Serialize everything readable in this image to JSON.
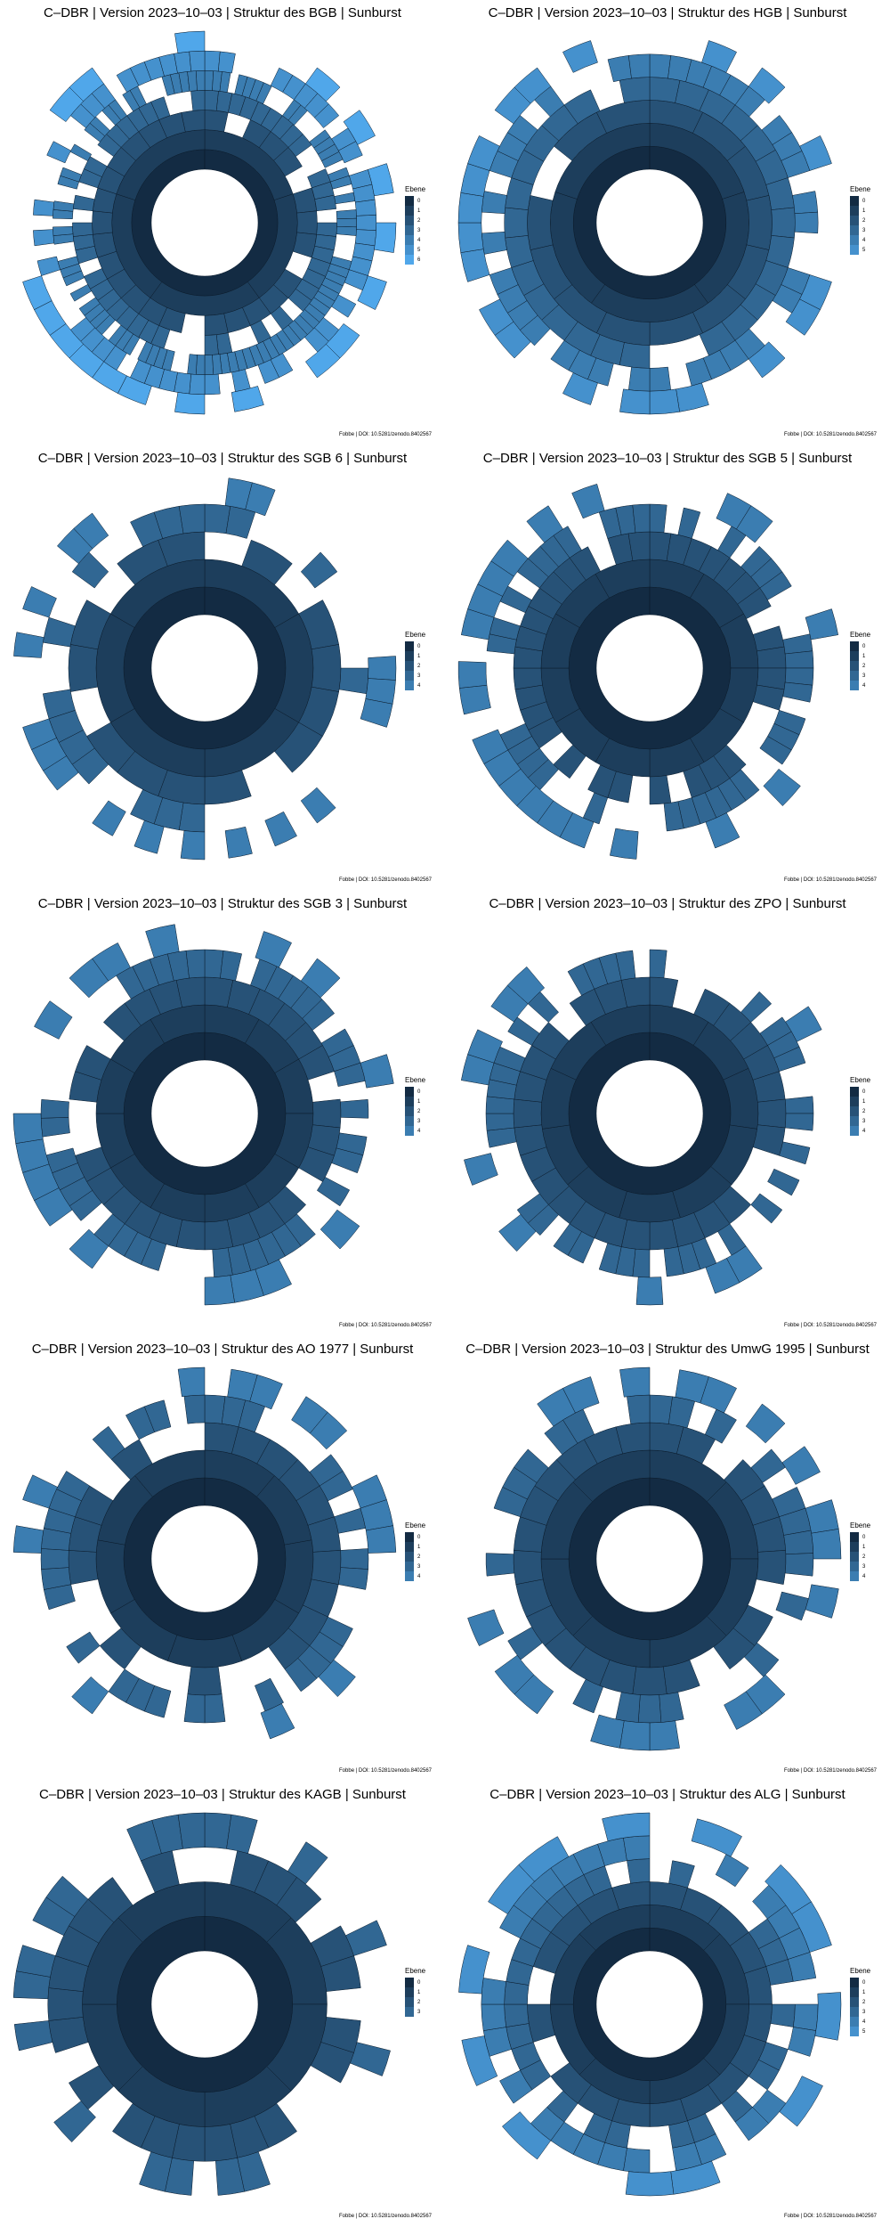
{
  "legend_title": "Ebene",
  "caption": "Fobbe | DOI: 10.5281/zenodo.8402567",
  "level_colors": [
    "#132b43",
    "#1d3e5c",
    "#275277",
    "#316793",
    "#3b7db1",
    "#4591cd",
    "#50a7ea"
  ],
  "chart_data": [
    {
      "type": "sunburst",
      "title": "C–DBR | Version 2023–10–03 | Struktur des BGB | Sunburst",
      "levels": [
        0,
        1,
        2,
        3,
        4,
        5,
        6
      ],
      "max_depth": 6,
      "segments_per_level": [
        1,
        5,
        30,
        60,
        110,
        70,
        40
      ],
      "legend": {
        "title": "Ebene",
        "entries": [
          "0",
          "1",
          "2",
          "3",
          "4",
          "5",
          "6"
        ],
        "position": "right"
      }
    },
    {
      "type": "sunburst",
      "title": "C–DBR | Version 2023–10–03 | Struktur des HGB | Sunburst",
      "levels": [
        0,
        1,
        2,
        3,
        4,
        5
      ],
      "max_depth": 5,
      "segments_per_level": [
        1,
        5,
        14,
        30,
        50,
        40
      ],
      "legend": {
        "title": "Ebene",
        "entries": [
          "0",
          "1",
          "2",
          "3",
          "4",
          "5"
        ],
        "position": "right"
      }
    },
    {
      "type": "sunburst",
      "title": "C–DBR | Version 2023–10–03 | Struktur des SGB 6 | Sunburst",
      "levels": [
        0,
        1,
        2,
        3,
        4
      ],
      "max_depth": 4,
      "segments_per_level": [
        1,
        6,
        18,
        40,
        50
      ],
      "legend": {
        "title": "Ebene",
        "entries": [
          "0",
          "1",
          "2",
          "3",
          "4"
        ],
        "position": "right"
      }
    },
    {
      "type": "sunburst",
      "title": "C–DBR | Version 2023–10–03 | Struktur des SGB 5 | Sunburst",
      "levels": [
        0,
        1,
        2,
        3,
        4
      ],
      "max_depth": 4,
      "segments_per_level": [
        1,
        12,
        40,
        60,
        45
      ],
      "legend": {
        "title": "Ebene",
        "entries": [
          "0",
          "1",
          "2",
          "3",
          "4"
        ],
        "position": "right"
      }
    },
    {
      "type": "sunburst",
      "title": "C–DBR | Version 2023–10–03 | Struktur des SGB 3 | Sunburst",
      "levels": [
        0,
        1,
        2,
        3,
        4
      ],
      "max_depth": 4,
      "segments_per_level": [
        1,
        12,
        30,
        55,
        40
      ],
      "legend": {
        "title": "Ebene",
        "entries": [
          "0",
          "1",
          "2",
          "3",
          "4"
        ],
        "position": "right"
      }
    },
    {
      "type": "sunburst",
      "title": "C–DBR | Version 2023–10–03 | Struktur des ZPO | Sunburst",
      "levels": [
        0,
        1,
        2,
        3,
        4
      ],
      "max_depth": 4,
      "segments_per_level": [
        1,
        11,
        30,
        60,
        45
      ],
      "legend": {
        "title": "Ebene",
        "entries": [
          "0",
          "1",
          "2",
          "3",
          "4"
        ],
        "position": "right"
      }
    },
    {
      "type": "sunburst",
      "title": "C–DBR | Version 2023–10–03 | Struktur des AO 1977 | Sunburst",
      "levels": [
        0,
        1,
        2,
        3,
        4
      ],
      "max_depth": 4,
      "segments_per_level": [
        1,
        9,
        25,
        50,
        45
      ],
      "legend": {
        "title": "Ebene",
        "entries": [
          "0",
          "1",
          "2",
          "3",
          "4"
        ],
        "position": "right"
      }
    },
    {
      "type": "sunburst",
      "title": "C–DBR | Version 2023–10–03 | Struktur des UmwG 1995 | Sunburst",
      "levels": [
        0,
        1,
        2,
        3,
        4
      ],
      "max_depth": 4,
      "segments_per_level": [
        1,
        8,
        25,
        45,
        40
      ],
      "legend": {
        "title": "Ebene",
        "entries": [
          "0",
          "1",
          "2",
          "3",
          "4"
        ],
        "position": "right"
      }
    },
    {
      "type": "sunburst",
      "title": "C–DBR | Version 2023–10–03 | Struktur des KAGB | Sunburst",
      "levels": [
        0,
        1,
        2,
        3
      ],
      "max_depth": 3,
      "segments_per_level": [
        1,
        8,
        30,
        45
      ],
      "legend": {
        "title": "Ebene",
        "entries": [
          "0",
          "1",
          "2",
          "3"
        ],
        "position": "right"
      }
    },
    {
      "type": "sunburst",
      "title": "C–DBR | Version 2023–10–03 | Struktur des ALG | Sunburst",
      "levels": [
        0,
        1,
        2,
        3,
        4,
        5
      ],
      "max_depth": 5,
      "segments_per_level": [
        1,
        8,
        20,
        40,
        40,
        25
      ],
      "legend": {
        "title": "Ebene",
        "entries": [
          "0",
          "1",
          "2",
          "3",
          "4",
          "5"
        ],
        "position": "right"
      }
    }
  ]
}
